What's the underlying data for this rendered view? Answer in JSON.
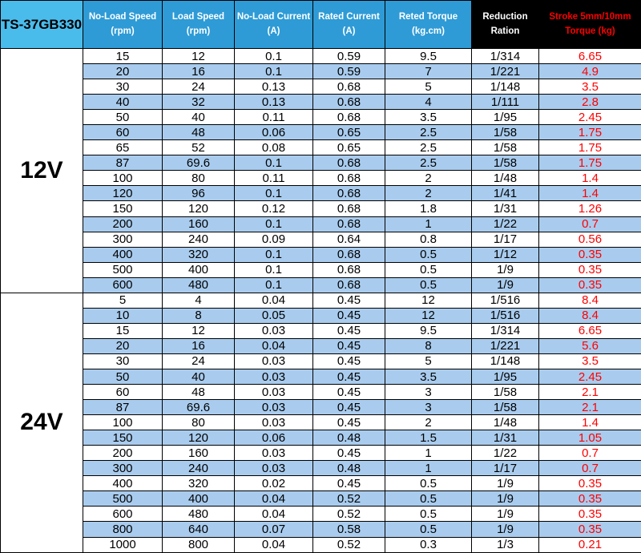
{
  "header": {
    "model": "TS-37GB330",
    "columns": [
      {
        "line1": "No-Load Speed",
        "line2": "(rpm)"
      },
      {
        "line1": "Load Speed",
        "line2": "(rpm)"
      },
      {
        "line1": "No-Load Current",
        "line2": "(A)"
      },
      {
        "line1": "Rated Current",
        "line2": "(A)"
      },
      {
        "line1": "Reted Torque",
        "line2": "(kg.cm)"
      },
      {
        "line1": "Reduction Ration",
        "line2": ""
      },
      {
        "line1": "Stroke 5mm/10mm",
        "line2": "Torque (kg)"
      }
    ]
  },
  "sections": [
    {
      "voltage": "12V",
      "rows": [
        [
          "15",
          "12",
          "0.1",
          "0.59",
          "9.5",
          "1/314",
          "6.65"
        ],
        [
          "20",
          "16",
          "0.1",
          "0.59",
          "7",
          "1/221",
          "4.9"
        ],
        [
          "30",
          "24",
          "0.13",
          "0.68",
          "5",
          "1/148",
          "3.5"
        ],
        [
          "40",
          "32",
          "0.13",
          "0.68",
          "4",
          "1/111",
          "2.8"
        ],
        [
          "50",
          "40",
          "0.11",
          "0.68",
          "3.5",
          "1/95",
          "2.45"
        ],
        [
          "60",
          "48",
          "0.06",
          "0.65",
          "2.5",
          "1/58",
          "1.75"
        ],
        [
          "65",
          "52",
          "0.08",
          "0.65",
          "2.5",
          "1/58",
          "1.75"
        ],
        [
          "87",
          "69.6",
          "0.1",
          "0.68",
          "2.5",
          "1/58",
          "1.75"
        ],
        [
          "100",
          "80",
          "0.11",
          "0.68",
          "2",
          "1/48",
          "1.4"
        ],
        [
          "120",
          "96",
          "0.1",
          "0.68",
          "2",
          "1/41",
          "1.4"
        ],
        [
          "150",
          "120",
          "0.12",
          "0.68",
          "1.8",
          "1/31",
          "1.26"
        ],
        [
          "200",
          "160",
          "0.1",
          "0.68",
          "1",
          "1/22",
          "0.7"
        ],
        [
          "300",
          "240",
          "0.09",
          "0.64",
          "0.8",
          "1/17",
          "0.56"
        ],
        [
          "400",
          "320",
          "0.1",
          "0.68",
          "0.5",
          "1/12",
          "0.35"
        ],
        [
          "500",
          "400",
          "0.1",
          "0.68",
          "0.5",
          "1/9",
          "0.35"
        ],
        [
          "600",
          "480",
          "0.1",
          "0.68",
          "0.5",
          "1/9",
          "0.35"
        ]
      ]
    },
    {
      "voltage": "24V",
      "rows": [
        [
          "5",
          "4",
          "0.04",
          "0.45",
          "12",
          "1/516",
          "8.4"
        ],
        [
          "10",
          "8",
          "0.05",
          "0.45",
          "12",
          "1/516",
          "8.4"
        ],
        [
          "15",
          "12",
          "0.03",
          "0.45",
          "9.5",
          "1/314",
          "6.65"
        ],
        [
          "20",
          "16",
          "0.04",
          "0.45",
          "8",
          "1/221",
          "5.6"
        ],
        [
          "30",
          "24",
          "0.03",
          "0.45",
          "5",
          "1/148",
          "3.5"
        ],
        [
          "50",
          "40",
          "0.03",
          "0.45",
          "3.5",
          "1/95",
          "2.45"
        ],
        [
          "60",
          "48",
          "0.03",
          "0.45",
          "3",
          "1/58",
          "2.1"
        ],
        [
          "87",
          "69.6",
          "0.03",
          "0.45",
          "3",
          "1/58",
          "2.1"
        ],
        [
          "100",
          "80",
          "0.03",
          "0.45",
          "2",
          "1/48",
          "1.4"
        ],
        [
          "150",
          "120",
          "0.06",
          "0.48",
          "1.5",
          "1/31",
          "1.05"
        ],
        [
          "200",
          "160",
          "0.03",
          "0.45",
          "1",
          "1/22",
          "0.7"
        ],
        [
          "300",
          "240",
          "0.03",
          "0.48",
          "1",
          "1/17",
          "0.7"
        ],
        [
          "400",
          "320",
          "0.02",
          "0.45",
          "0.5",
          "1/9",
          "0.35"
        ],
        [
          "500",
          "400",
          "0.04",
          "0.52",
          "0.5",
          "1/9",
          "0.35"
        ],
        [
          "600",
          "480",
          "0.04",
          "0.52",
          "0.5",
          "1/9",
          "0.35"
        ],
        [
          "800",
          "640",
          "0.07",
          "0.58",
          "0.5",
          "1/9",
          "0.35"
        ],
        [
          "1000",
          "800",
          "0.04",
          "0.52",
          "0.3",
          "1/3",
          "0.21"
        ]
      ]
    }
  ],
  "colors": {
    "header_blue": "#2E9BD6",
    "model_cell_blue": "#4ABCEC",
    "stripe_blue": "#A9CCEE",
    "header_black": "#000000",
    "accent_red": "#FF0000",
    "border": "#000000"
  }
}
